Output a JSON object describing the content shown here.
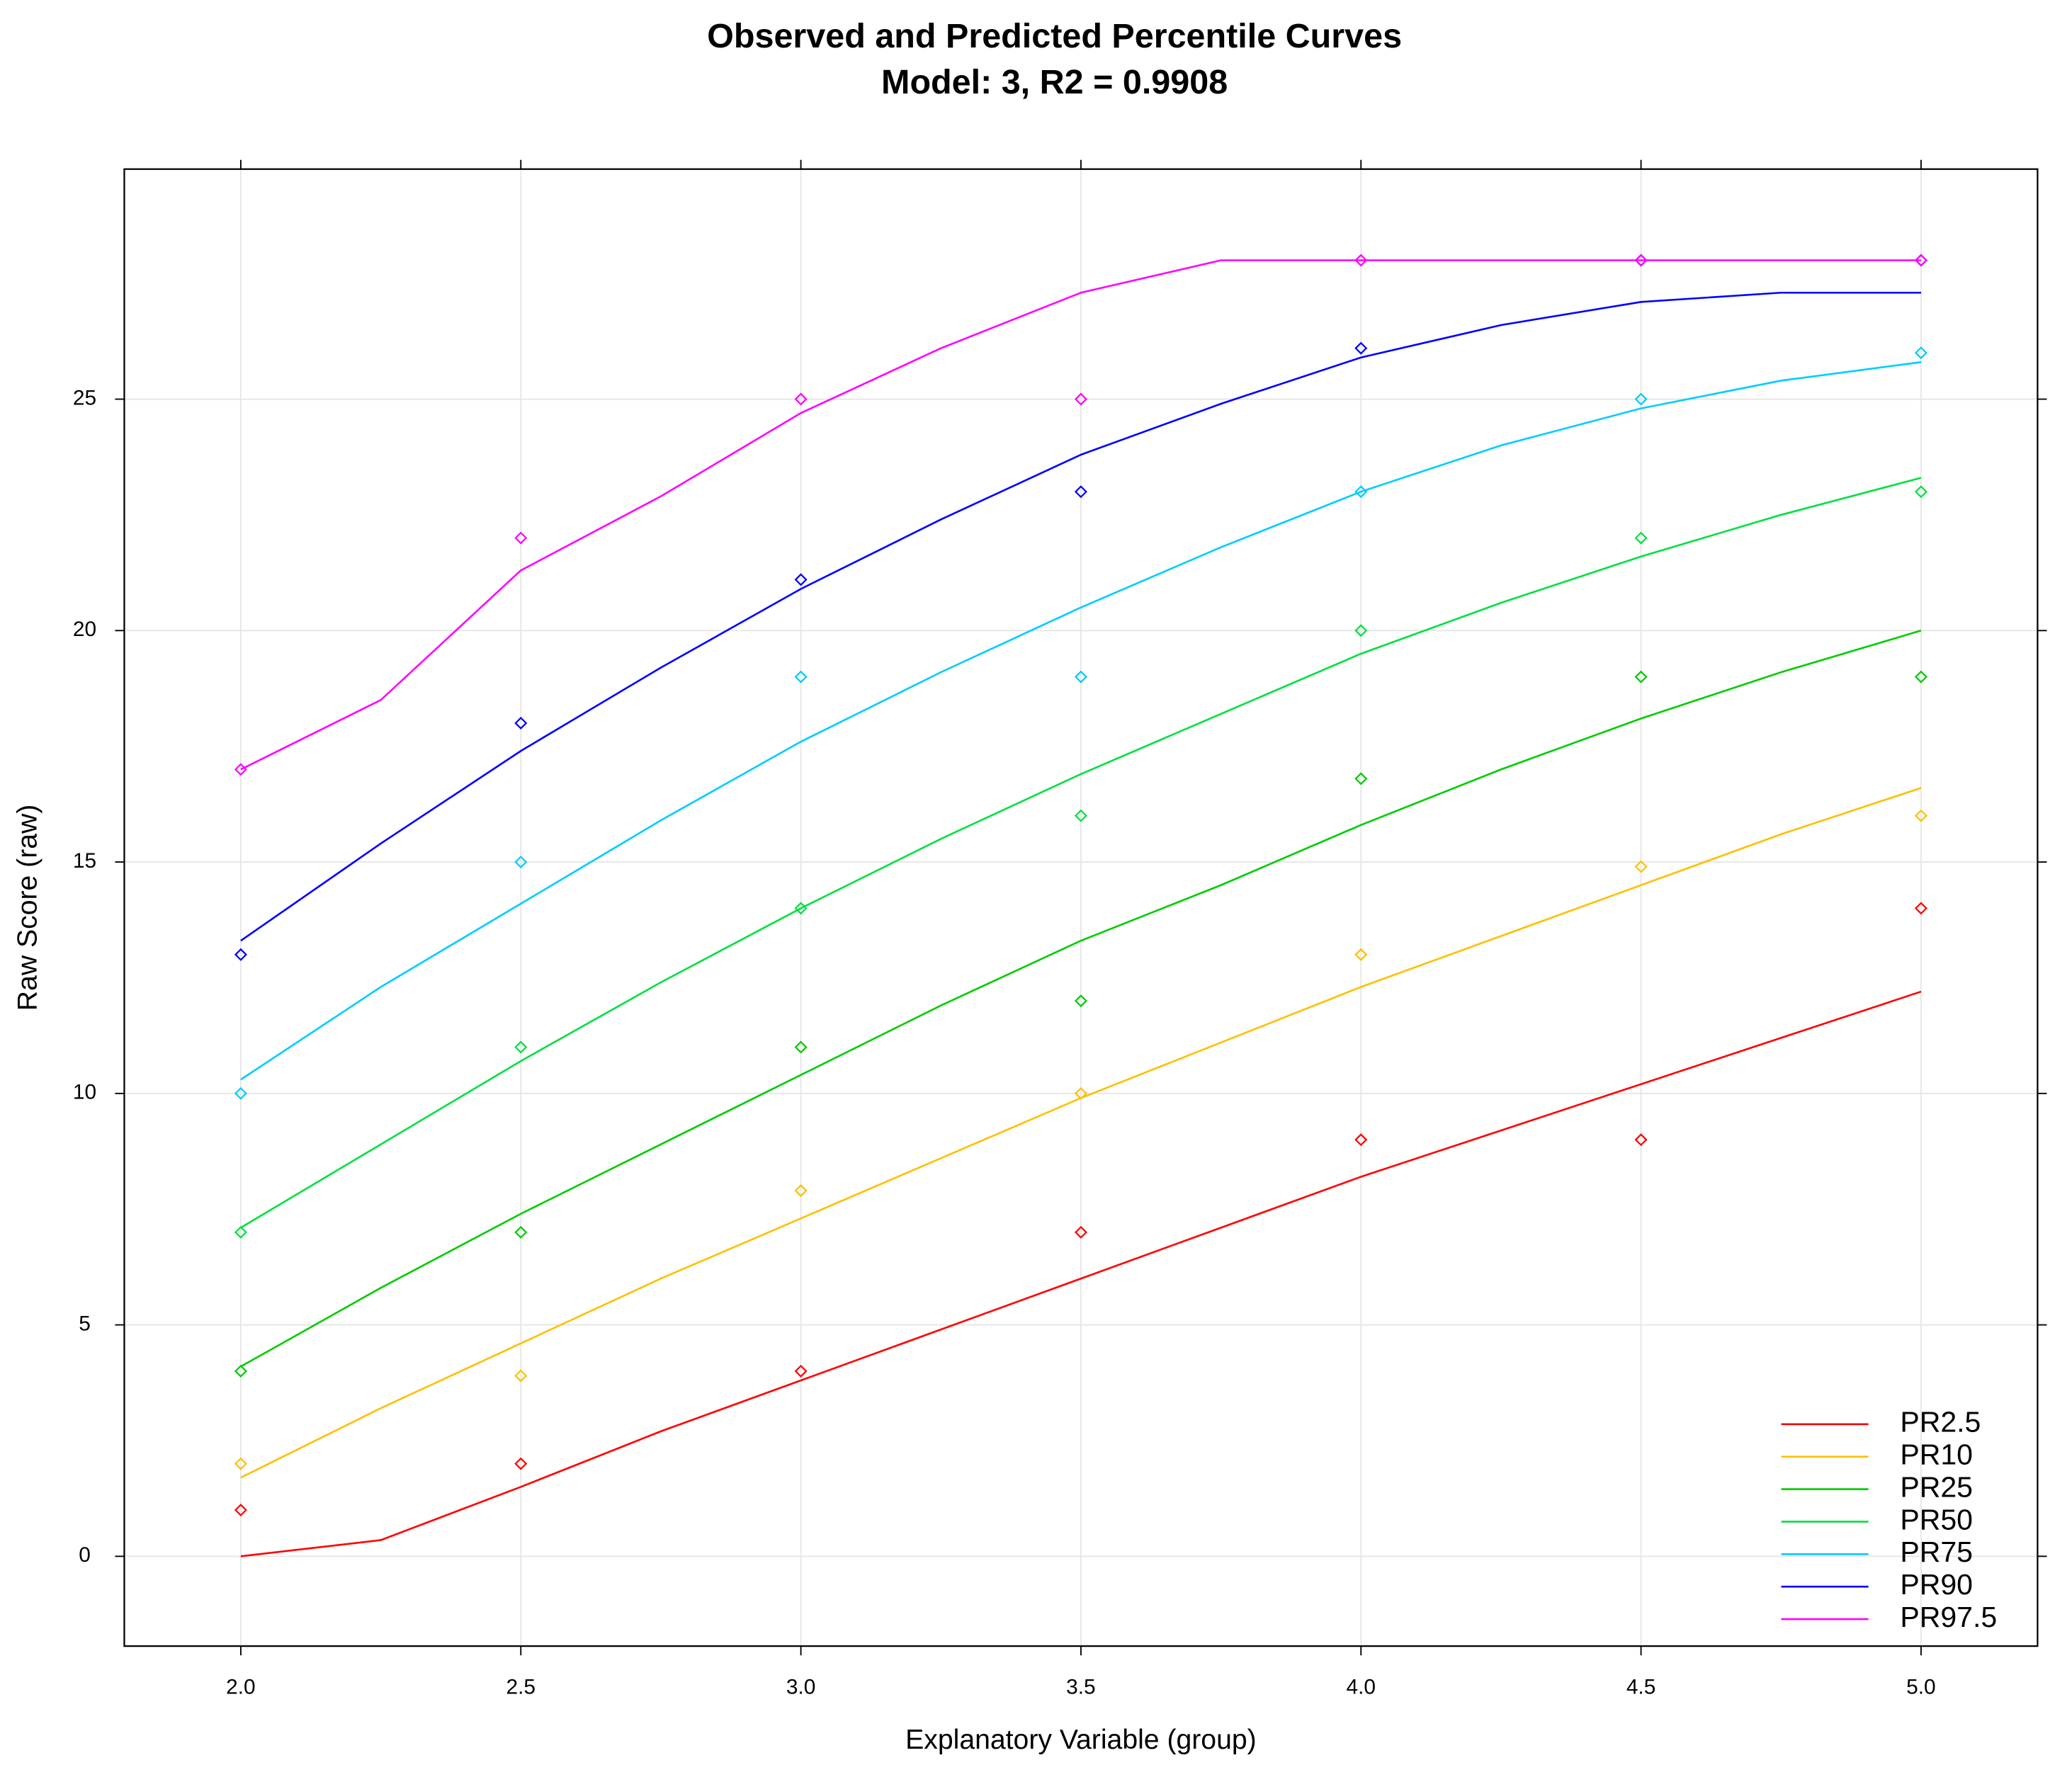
{
  "chart_data": {
    "type": "line",
    "title": "Observed and Predicted Percentile Curves",
    "subtitle": "Model: 3, R2 = 0.9908",
    "x_label": "Explanatory Variable (group)",
    "y_label": "Raw Score (raw)",
    "x": [
      2.0,
      2.25,
      2.5,
      2.75,
      3.0,
      3.25,
      3.5,
      3.75,
      4.0,
      4.25,
      4.5,
      4.75,
      5.0
    ],
    "observed_x": [
      2.0,
      2.5,
      3.0,
      3.5,
      4.0,
      4.5,
      5.0
    ],
    "series": [
      {
        "name": "PR2.5",
        "color": "#ff0000",
        "values": [
          0,
          0.35,
          1.5,
          2.7,
          3.8,
          4.9,
          6.0,
          7.1,
          8.2,
          9.2,
          10.2,
          11.2,
          12.2
        ],
        "observed": [
          1,
          2,
          4,
          7,
          9,
          9,
          14
        ]
      },
      {
        "name": "PR10",
        "color": "#ffbf00",
        "values": [
          1.7,
          3.2,
          4.6,
          6.0,
          7.3,
          8.6,
          9.9,
          11.1,
          12.3,
          13.4,
          14.5,
          15.6,
          16.6
        ],
        "observed": [
          2,
          3.9,
          7.9,
          10,
          13,
          14.9,
          16
        ]
      },
      {
        "name": "PR25",
        "color": "#00cc00",
        "values": [
          4.1,
          5.8,
          7.4,
          8.9,
          10.4,
          11.9,
          13.3,
          14.5,
          15.8,
          17.0,
          18.1,
          19.1,
          20.0
        ],
        "observed": [
          4,
          7,
          11,
          12,
          16.8,
          19,
          19
        ]
      },
      {
        "name": "PR50",
        "color": "#00e040",
        "values": [
          7.1,
          8.9,
          10.7,
          12.4,
          14.0,
          15.5,
          16.9,
          18.2,
          19.5,
          20.6,
          21.6,
          22.5,
          23.3
        ],
        "observed": [
          7,
          11,
          14,
          16,
          20,
          22,
          23
        ]
      },
      {
        "name": "PR75",
        "color": "#00ccff",
        "values": [
          10.3,
          12.3,
          14.1,
          15.9,
          17.6,
          19.1,
          20.5,
          21.8,
          23.0,
          24.0,
          24.8,
          25.4,
          25.8
        ],
        "observed": [
          10,
          15,
          19,
          19,
          23,
          25,
          26
        ]
      },
      {
        "name": "PR90",
        "color": "#0000ff",
        "values": [
          13.3,
          15.4,
          17.4,
          19.2,
          20.9,
          22.4,
          23.8,
          24.9,
          25.9,
          26.6,
          27.1,
          27.3,
          27.3
        ],
        "observed": [
          13,
          18,
          21.1,
          23,
          26.1,
          28,
          28
        ]
      },
      {
        "name": "PR97.5",
        "color": "#ff00ff",
        "values": [
          17.0,
          18.5,
          21.3,
          22.9,
          24.7,
          26.1,
          27.3,
          28,
          28,
          28,
          28,
          28,
          28
        ],
        "observed": [
          17,
          22,
          25,
          25,
          28,
          28,
          28
        ]
      }
    ],
    "xlim": [
      1.792,
      5.208
    ],
    "ylim": [
      -1.94,
      29.97
    ],
    "xticks": [
      {
        "value": 2.0,
        "label": "2.0"
      },
      {
        "value": 2.5,
        "label": "2.5"
      },
      {
        "value": 3.0,
        "label": "3.0"
      },
      {
        "value": 3.5,
        "label": "3.5"
      },
      {
        "value": 4.0,
        "label": "4.0"
      },
      {
        "value": 4.5,
        "label": "4.5"
      },
      {
        "value": 5.0,
        "label": "5.0"
      }
    ],
    "yticks": [
      0,
      5,
      10,
      15,
      20,
      25
    ],
    "grid": true,
    "legend": "bottom-right"
  }
}
